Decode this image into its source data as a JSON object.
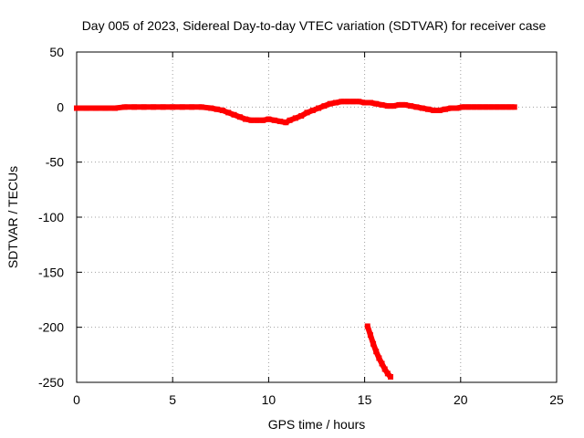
{
  "chart_data": {
    "type": "scatter",
    "title": "Day 005 of 2023, Sidereal Day-to-day VTEC variation (SDTVAR) for receiver case",
    "xlabel": "GPS time / hours",
    "ylabel": "SDTVAR / TECUs",
    "xlim": [
      0,
      25
    ],
    "ylim": [
      -250,
      50
    ],
    "xticks": [
      0,
      5,
      10,
      15,
      20,
      25
    ],
    "yticks": [
      50,
      0,
      -50,
      -100,
      -150,
      -200,
      -250
    ],
    "grid": true,
    "series": [
      {
        "name": "SDTVAR main trace",
        "color": "#ff0000",
        "x": [
          0.0,
          0.5,
          1.0,
          1.5,
          2.0,
          2.5,
          3.0,
          3.5,
          4.0,
          4.5,
          5.0,
          5.5,
          6.0,
          6.5,
          7.0,
          7.3,
          7.6,
          7.9,
          8.2,
          8.5,
          8.8,
          9.1,
          9.4,
          9.7,
          10.0,
          10.3,
          10.6,
          10.9,
          11.1,
          11.4,
          11.7,
          12.0,
          12.3,
          12.6,
          12.9,
          13.2,
          13.5,
          13.8,
          14.1,
          14.4,
          14.7,
          15.0,
          15.3,
          15.6,
          15.9,
          16.2,
          16.5,
          16.8,
          17.1,
          17.4,
          17.7,
          18.0,
          18.3,
          18.6,
          18.9,
          19.2,
          19.5,
          19.8,
          20.1,
          20.4,
          20.7,
          21.0,
          21.3,
          21.6,
          21.9,
          22.2,
          22.5,
          22.8
        ],
        "y": [
          -1,
          -1,
          -1,
          -1,
          -1,
          0,
          0,
          0,
          0,
          0,
          0,
          0,
          0,
          0,
          -1,
          -2,
          -3,
          -5,
          -7,
          -9,
          -11,
          -12,
          -12,
          -12,
          -11,
          -12,
          -13,
          -14,
          -12,
          -10,
          -8,
          -5,
          -3,
          -1,
          1,
          3,
          4,
          5,
          5,
          5,
          5,
          4,
          4,
          3,
          2,
          1,
          1,
          2,
          2,
          1,
          0,
          -1,
          -2,
          -3,
          -3,
          -2,
          -1,
          -1,
          0,
          0,
          0,
          0,
          0,
          0,
          0,
          0,
          0,
          0
        ]
      },
      {
        "name": "SDTVAR lower segment",
        "color": "#ff0000",
        "x": [
          15.15,
          15.3,
          15.45,
          15.6,
          15.75,
          15.9,
          16.05,
          16.2,
          16.35
        ],
        "y": [
          -199,
          -207,
          -215,
          -222,
          -228,
          -233,
          -238,
          -242,
          -245
        ]
      }
    ]
  }
}
